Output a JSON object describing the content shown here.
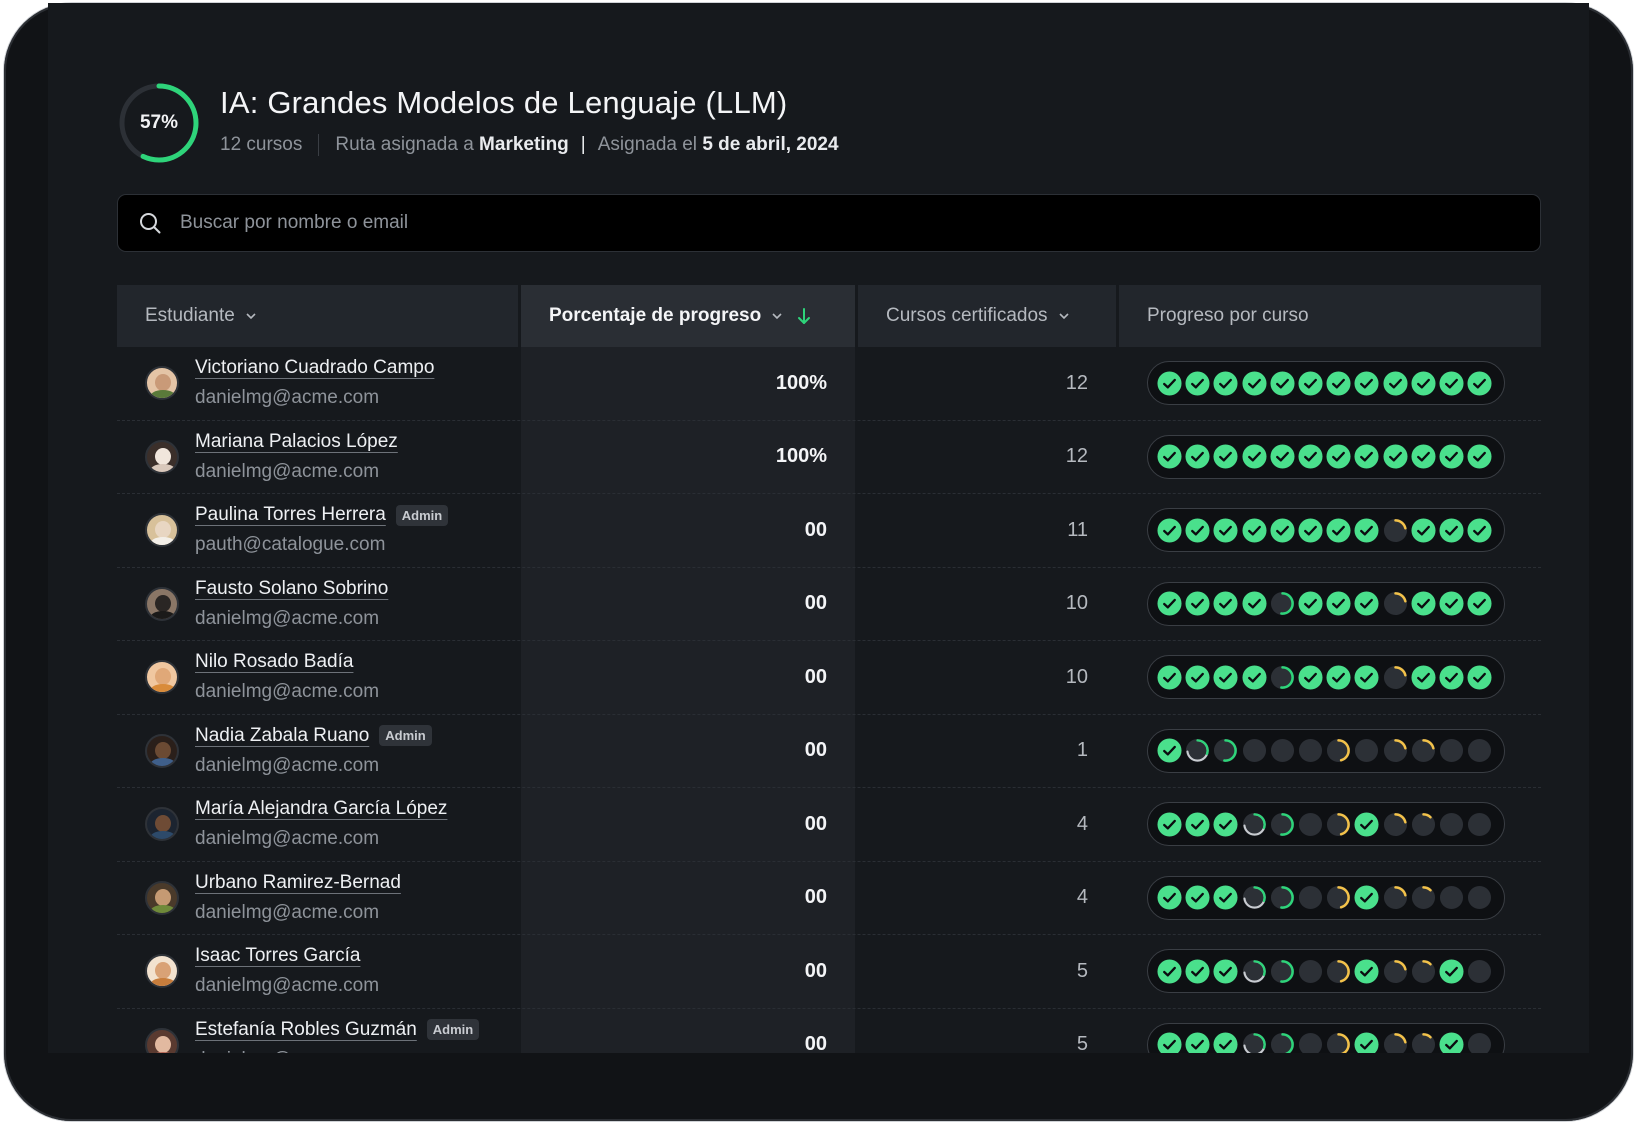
{
  "header": {
    "progress_label": "57%",
    "progress_value": 0.57,
    "title": "IA: Grandes Modelos de Lenguaje (LLM)",
    "courses_count": "12 cursos",
    "assigned_route_prefix": "Ruta asignada a",
    "assigned_route_team": "Marketing",
    "pipe": "|",
    "assigned_date_prefix": "Asignada el",
    "assigned_date": "5 de abril, 2024"
  },
  "search": {
    "placeholder": "Buscar por nombre o email"
  },
  "table": {
    "columns": {
      "student": "Estudiante",
      "progress": "Porcentaje de progreso",
      "certified": "Cursos certificados",
      "per_course": "Progreso por curso"
    },
    "status_colors": {
      "done": "#4ae08c",
      "in_progress": "#2ed47a",
      "started": "#f3c24a",
      "empty": "#2c3036"
    },
    "rows": [
      {
        "name": "Victoriano Cuadrado Campo",
        "badge": "",
        "email": "danielmg@acme.com",
        "progress": "100%",
        "certified": "12",
        "courses": [
          "done",
          "done",
          "done",
          "done",
          "done",
          "done",
          "done",
          "done",
          "done",
          "done",
          "done",
          "done"
        ]
      },
      {
        "name": "Mariana Palacios López",
        "badge": "",
        "email": "danielmg@acme.com",
        "progress": "100%",
        "certified": "12",
        "courses": [
          "done",
          "done",
          "done",
          "done",
          "done",
          "done",
          "done",
          "done",
          "done",
          "done",
          "done",
          "done"
        ]
      },
      {
        "name": "Paulina Torres Herrera",
        "badge": "Admin",
        "email": "pauth@catalogue.com",
        "progress": "00",
        "certified": "11",
        "courses": [
          "done",
          "done",
          "done",
          "done",
          "done",
          "done",
          "done",
          "done",
          "started",
          "done",
          "done",
          "done"
        ]
      },
      {
        "name": "Fausto Solano Sobrino",
        "badge": "",
        "email": "danielmg@acme.com",
        "progress": "00",
        "certified": "10",
        "courses": [
          "done",
          "done",
          "done",
          "done",
          "in_progress",
          "done",
          "done",
          "done",
          "started",
          "done",
          "done",
          "done"
        ]
      },
      {
        "name": "Nilo Rosado Badía",
        "badge": "",
        "email": "danielmg@acme.com",
        "progress": "00",
        "certified": "10",
        "courses": [
          "done",
          "done",
          "done",
          "done",
          "in_progress",
          "done",
          "done",
          "done",
          "started",
          "done",
          "done",
          "done"
        ]
      },
      {
        "name": "Nadia Zabala Ruano",
        "badge": "Admin",
        "email": "danielmg@acme.com",
        "progress": "00",
        "certified": "1",
        "courses": [
          "done",
          "ring_large",
          "in_progress",
          "empty",
          "empty",
          "empty",
          "started_large",
          "empty",
          "started",
          "started",
          "empty",
          "empty"
        ]
      },
      {
        "name": "María Alejandra García López",
        "badge": "",
        "email": "danielmg@acme.com",
        "progress": "00",
        "certified": "4",
        "courses": [
          "done",
          "done",
          "done",
          "ring_large",
          "in_progress",
          "empty",
          "started_large",
          "done",
          "started",
          "started_small",
          "empty",
          "empty"
        ]
      },
      {
        "name": "Urbano Ramirez-Bernad",
        "badge": "",
        "email": "danielmg@acme.com",
        "progress": "00",
        "certified": "4",
        "courses": [
          "done",
          "done",
          "done",
          "ring_large",
          "in_progress",
          "empty",
          "started_large",
          "done",
          "started",
          "started_small",
          "empty",
          "empty"
        ]
      },
      {
        "name": "Isaac Torres García",
        "badge": "",
        "email": "danielmg@acme.com",
        "progress": "00",
        "certified": "5",
        "courses": [
          "done",
          "done",
          "done",
          "ring_large",
          "in_progress",
          "empty",
          "started_large",
          "done",
          "started",
          "started_small",
          "done",
          "empty"
        ]
      },
      {
        "name": "Estefanía Robles Guzmán",
        "badge": "Admin",
        "email": "danielmg@acme.com",
        "progress": "00",
        "certified": "5",
        "courses": [
          "done",
          "done",
          "done",
          "ring_large",
          "in_progress",
          "empty",
          "started_large",
          "done",
          "started",
          "started_small",
          "done",
          "empty"
        ]
      }
    ]
  }
}
